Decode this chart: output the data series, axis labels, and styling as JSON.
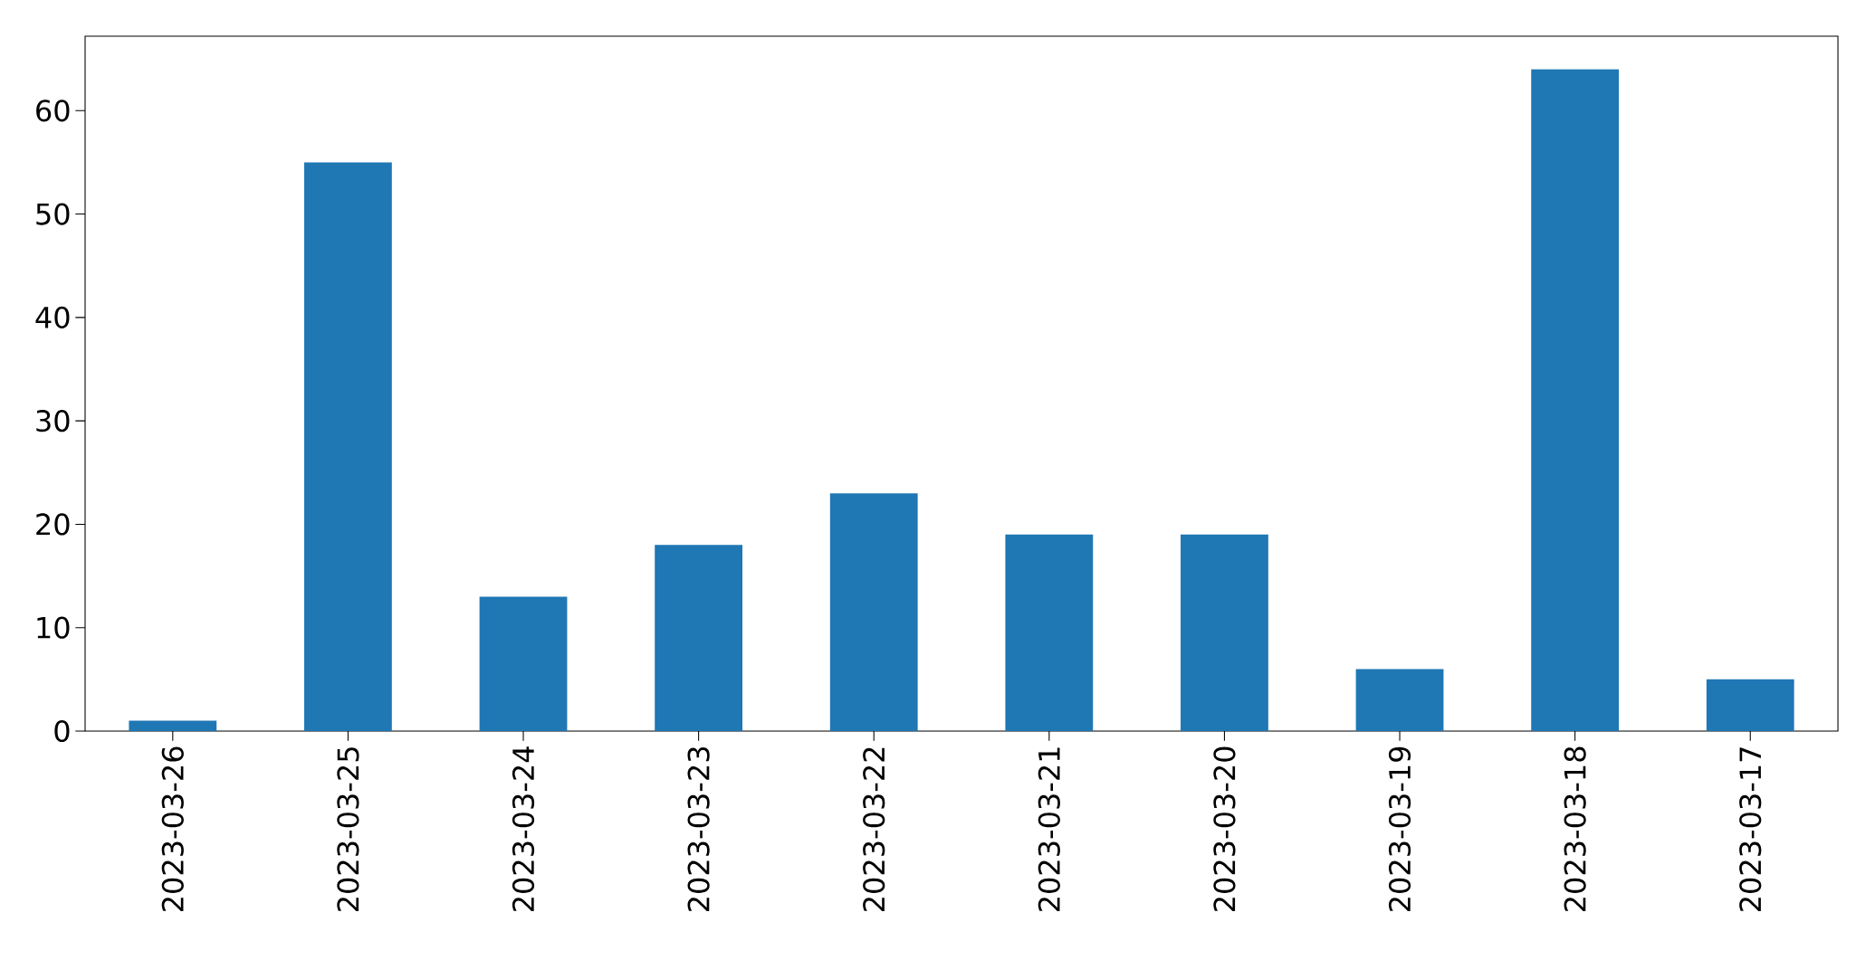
{
  "chart_data": {
    "type": "bar",
    "categories": [
      "2023-03-26",
      "2023-03-25",
      "2023-03-24",
      "2023-03-23",
      "2023-03-22",
      "2023-03-21",
      "2023-03-20",
      "2023-03-19",
      "2023-03-18",
      "2023-03-17"
    ],
    "values": [
      1,
      55,
      13,
      18,
      23,
      19,
      19,
      6,
      64,
      5
    ],
    "color": "#1f77b4",
    "ylim": [
      0,
      67.2
    ],
    "yticks": [
      0,
      10,
      20,
      30,
      40,
      50,
      60
    ]
  }
}
